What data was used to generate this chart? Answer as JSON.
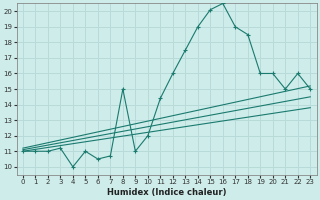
{
  "xlabel": "Humidex (Indice chaleur)",
  "background_color": "#cdecea",
  "line_color": "#1a7a6e",
  "grid_color": "#b8dbd9",
  "xlim": [
    -0.5,
    23.5
  ],
  "ylim": [
    9.5,
    20.5
  ],
  "x_ticks": [
    0,
    1,
    2,
    3,
    4,
    5,
    6,
    7,
    8,
    9,
    10,
    11,
    12,
    13,
    14,
    15,
    16,
    17,
    18,
    19,
    20,
    21,
    22,
    23
  ],
  "y_ticks": [
    10,
    11,
    12,
    13,
    14,
    15,
    16,
    17,
    18,
    19,
    20
  ],
  "main_curve_x": [
    0,
    1,
    2,
    3,
    4,
    5,
    6,
    7,
    8,
    9,
    10,
    11,
    12,
    13,
    14,
    15,
    16,
    17,
    18,
    19,
    20,
    21,
    22,
    23
  ],
  "main_curve_y": [
    11,
    11,
    11,
    11.2,
    10,
    11,
    10.5,
    10.7,
    15,
    11,
    12,
    14.4,
    16,
    17.5,
    19,
    20.1,
    20.5,
    19,
    18.5,
    16,
    16,
    15,
    16,
    15
  ],
  "line1_x": [
    0,
    23
  ],
  "line1_y": [
    11.0,
    13.8
  ],
  "line2_x": [
    0,
    23
  ],
  "line2_y": [
    11.1,
    14.5
  ],
  "line3_x": [
    0,
    23
  ],
  "line3_y": [
    11.2,
    15.2
  ]
}
